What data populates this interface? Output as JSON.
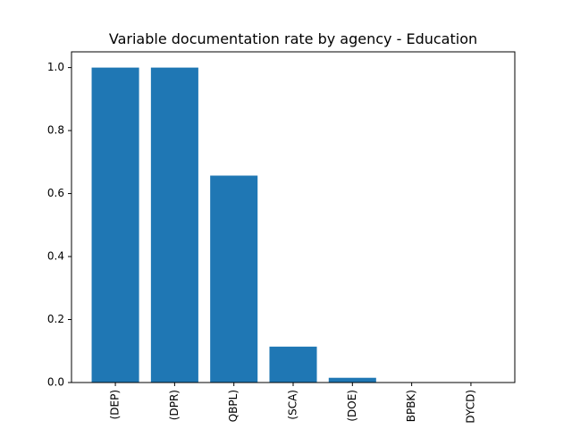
{
  "chart_data": {
    "type": "bar",
    "title": "Variable documentation rate by agency - Education",
    "xlabel": "",
    "ylabel": "",
    "categories": [
      "(DEP)",
      "(DPR)",
      "QBPL)",
      "(SCA)",
      "(DOE)",
      "BPBK)",
      "DYCD)"
    ],
    "values": [
      1.0,
      1.0,
      0.657,
      0.114,
      0.015,
      0.0,
      0.0
    ],
    "ylim": [
      0,
      1.05
    ],
    "yticks": [
      "0.0",
      "0.2",
      "0.4",
      "0.6",
      "0.8",
      "1.0"
    ],
    "bar_color": "#1f77b4",
    "grid": false
  }
}
